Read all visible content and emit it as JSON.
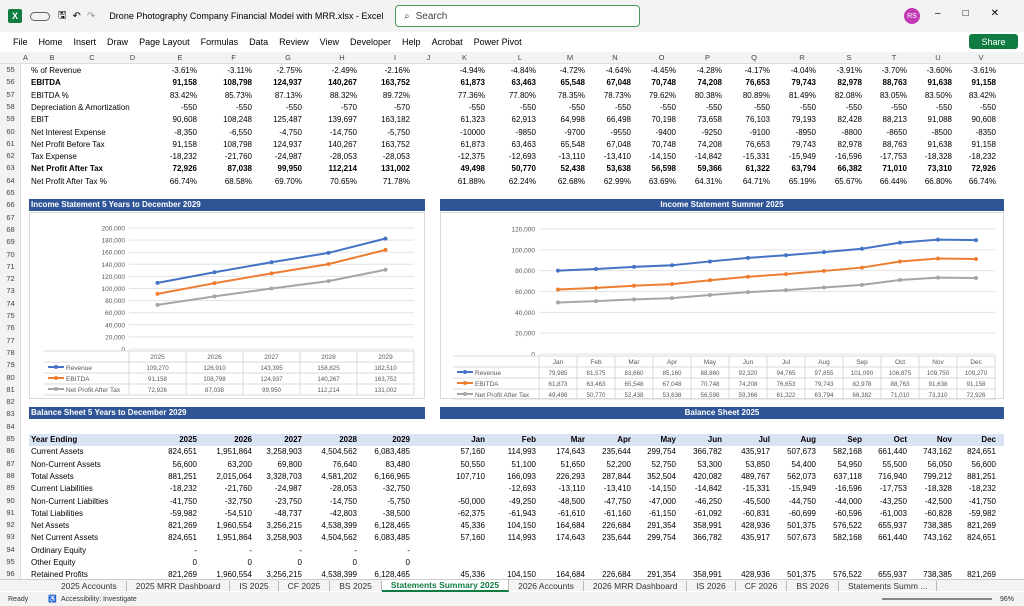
{
  "window": {
    "title": "Drone Photography Company Financial Model with MRR.xlsx  -  Excel",
    "search": "Search",
    "user": "RS",
    "share": "Share"
  },
  "menu": [
    "File",
    "Home",
    "Insert",
    "Draw",
    "Page Layout",
    "Formulas",
    "Data",
    "Review",
    "View",
    "Developer",
    "Help",
    "Acrobat",
    "Power Pivot"
  ],
  "cols": [
    "A",
    "B",
    "C",
    "D",
    "E",
    "F",
    "G",
    "H",
    "I",
    "J",
    "K",
    "L",
    "M",
    "N",
    "O",
    "P",
    "Q",
    "R",
    "S",
    "T",
    "U",
    "V"
  ],
  "top_rows": [
    {
      "n": "55",
      "label": "% of Revenue",
      "bold": false,
      "v": [
        "-3.61%",
        "-3.11%",
        "-2.75%",
        "-2.49%",
        "-2.16%",
        "-4.94%",
        "-4.84%",
        "-4.72%",
        "-4.64%",
        "-4.45%",
        "-4.28%",
        "-4.17%",
        "-4.04%",
        "-3.91%",
        "-3.70%",
        "-3.60%",
        "-3.61%"
      ]
    },
    {
      "n": "56",
      "label": "EBITDA",
      "bold": true,
      "v": [
        "91,158",
        "108,798",
        "124,937",
        "140,267",
        "163,752",
        "61,873",
        "63,463",
        "65,548",
        "67,048",
        "70,748",
        "74,208",
        "76,653",
        "79,743",
        "82,978",
        "88,763",
        "91,638",
        "91,158"
      ]
    },
    {
      "n": "57",
      "label": "EBITDA %",
      "bold": false,
      "v": [
        "83.42%",
        "85.73%",
        "87.13%",
        "88.32%",
        "89.72%",
        "77.36%",
        "77.80%",
        "78.35%",
        "78.73%",
        "79.62%",
        "80.38%",
        "80.89%",
        "81.49%",
        "82.08%",
        "83.05%",
        "83.50%",
        "83.42%"
      ]
    },
    {
      "n": "58",
      "label": "Depreciation & Amortization",
      "bold": false,
      "v": [
        "-550",
        "-550",
        "-550",
        "-570",
        "-570",
        "-550",
        "-550",
        "-550",
        "-550",
        "-550",
        "-550",
        "-550",
        "-550",
        "-550",
        "-550",
        "-550",
        "-550"
      ]
    },
    {
      "n": "59",
      "label": "EBIT",
      "bold": false,
      "v": [
        "90,608",
        "108,248",
        "125,487",
        "139,697",
        "163,182",
        "61,323",
        "62,913",
        "64,998",
        "66,498",
        "70,198",
        "73,658",
        "76,103",
        "79,193",
        "82,428",
        "88,213",
        "91,088",
        "90,608"
      ]
    },
    {
      "n": "60",
      "label": "Net Interest Expense",
      "bold": false,
      "v": [
        "-8,350",
        "-6,550",
        "-4,750",
        "-14,750",
        "-5,750",
        "-10000",
        "-9850",
        "-9700",
        "-9550",
        "-9400",
        "-9250",
        "-9100",
        "-8950",
        "-8800",
        "-8650",
        "-8500",
        "-8350"
      ]
    },
    {
      "n": "61",
      "label": "Net Profit Before Tax",
      "bold": false,
      "v": [
        "91,158",
        "108,798",
        "124,937",
        "140,267",
        "163,752",
        "61,873",
        "63,463",
        "65,548",
        "67,048",
        "70,748",
        "74,208",
        "76,653",
        "79,743",
        "82,978",
        "88,763",
        "91,638",
        "91,158"
      ]
    },
    {
      "n": "62",
      "label": "Tax Expense",
      "bold": false,
      "v": [
        "-18,232",
        "-21,760",
        "-24,987",
        "-28,053",
        "-28,053",
        "-12,375",
        "-12,693",
        "-13,110",
        "-13,410",
        "-14,150",
        "-14,842",
        "-15,331",
        "-15,949",
        "-16,596",
        "-17,753",
        "-18,328",
        "-18,232"
      ]
    },
    {
      "n": "63",
      "label": "Net Profit After Tax",
      "bold": true,
      "v": [
        "72,926",
        "87,038",
        "99,950",
        "112,214",
        "131,002",
        "49,498",
        "50,770",
        "52,438",
        "53,638",
        "56,598",
        "59,366",
        "61,322",
        "63,794",
        "66,382",
        "71,010",
        "73,310",
        "72,926"
      ]
    },
    {
      "n": "64",
      "label": "Net Profit After Tax %",
      "bold": false,
      "v": [
        "66.74%",
        "68.58%",
        "69.70%",
        "70.65%",
        "71.78%",
        "61.88%",
        "62.24%",
        "62.68%",
        "62.99%",
        "63.69%",
        "64.31%",
        "64.71%",
        "65.19%",
        "65.67%",
        "66.44%",
        "66.80%",
        "66.74%"
      ]
    }
  ],
  "band_is_5y": "Income Statement 5 Years to December 2029",
  "band_is_month": "Income Statement Summer 2025",
  "band_bs_5y": "Balance Sheet 5 Years to December 2029",
  "band_bs_month": "Balance Sheet 2025",
  "chart_data": [
    {
      "type": "line",
      "title": "",
      "categories": [
        "2025",
        "2026",
        "2027",
        "2028",
        "2029"
      ],
      "ylim": [
        0,
        200000
      ],
      "yticks": [
        "0",
        "20,000",
        "40,000",
        "60,000",
        "80,000",
        "100,000",
        "120,000",
        "140,000",
        "160,000",
        "180,000",
        "200,000"
      ],
      "series": [
        {
          "name": "Revenue",
          "color": "#4472c4",
          "values": [
            109270,
            126910,
            143395,
            158825,
            182510
          ],
          "labels": [
            "109,270",
            "126,910",
            "143,395",
            "158,825",
            "182,510"
          ]
        },
        {
          "name": "EBITDA",
          "color": "#ed7d31",
          "values": [
            91158,
            108798,
            124937,
            140267,
            163752
          ],
          "labels": [
            "91,158",
            "108,798",
            "124,937",
            "140,267",
            "163,752"
          ]
        },
        {
          "name": "Net Profit After Tax",
          "color": "#a5a5a5",
          "values": [
            72926,
            87038,
            99950,
            112214,
            131002
          ],
          "labels": [
            "72,926",
            "87,038",
            "99,950",
            "112,214",
            "131,002"
          ]
        }
      ]
    },
    {
      "type": "line",
      "title": "",
      "categories": [
        "Jan",
        "Feb",
        "Mar",
        "Apr",
        "May",
        "Jun",
        "Jul",
        "Aug",
        "Sep",
        "Oct",
        "Nov",
        "Dec"
      ],
      "ylim": [
        0,
        120000
      ],
      "yticks": [
        "0",
        "20,000",
        "40,000",
        "60,000",
        "80,000",
        "100,000",
        "120,000"
      ],
      "series": [
        {
          "name": "Revenue",
          "color": "#4472c4",
          "values": [
            79985,
            81575,
            83660,
            85160,
            88860,
            92320,
            94765,
            97855,
            101090,
            106875,
            109750,
            109270
          ],
          "labels": [
            "79,985",
            "81,575",
            "83,660",
            "85,160",
            "88,860",
            "92,320",
            "94,765",
            "97,855",
            "101,090",
            "106,875",
            "109,750",
            "109,270"
          ]
        },
        {
          "name": "EBITDA",
          "color": "#ed7d31",
          "values": [
            61873,
            63463,
            65548,
            67048,
            70748,
            74208,
            76653,
            79743,
            82978,
            88763,
            91638,
            91158
          ],
          "labels": [
            "61,873",
            "63,463",
            "65,548",
            "67,048",
            "70,748",
            "74,208",
            "76,653",
            "79,743",
            "82,978",
            "88,763",
            "91,638",
            "91,158"
          ]
        },
        {
          "name": "Net Profit After Tax",
          "color": "#a5a5a5",
          "values": [
            49498,
            50770,
            52438,
            53638,
            56598,
            59366,
            61322,
            63794,
            66382,
            71010,
            73310,
            72926
          ],
          "labels": [
            "49,498",
            "50,770",
            "52,438",
            "53,638",
            "56,598",
            "59,366",
            "61,322",
            "63,794",
            "66,382",
            "71,010",
            "73,310",
            "72,926"
          ]
        }
      ]
    }
  ],
  "bs_header": {
    "n": "84",
    "label": "Year Ending",
    "v": [
      "2025",
      "2026",
      "2027",
      "2028",
      "2029",
      "Jan",
      "Feb",
      "Mar",
      "Apr",
      "May",
      "Jun",
      "Jul",
      "Aug",
      "Sep",
      "Oct",
      "Nov",
      "Dec"
    ]
  },
  "bs_rows": [
    {
      "n": "86",
      "label": "Current Assets",
      "v": [
        "824,651",
        "1,951,864",
        "3,258,903",
        "4,504,562",
        "6,083,485",
        "57,160",
        "114,993",
        "174,643",
        "235,644",
        "299,754",
        "366,782",
        "435,917",
        "507,673",
        "582,168",
        "661,440",
        "743,162",
        "824,651"
      ]
    },
    {
      "n": "87",
      "label": "Non-Current Assets",
      "v": [
        "56,600",
        "63,200",
        "69,800",
        "76,640",
        "83,480",
        "50,550",
        "51,100",
        "51,650",
        "52,200",
        "52,750",
        "53,300",
        "53,850",
        "54,400",
        "54,950",
        "55,500",
        "56,050",
        "56,600"
      ]
    },
    {
      "n": "88",
      "label": "Total Assets",
      "v": [
        "881,251",
        "2,015,064",
        "3,328,703",
        "4,581,202",
        "6,166,965",
        "107,710",
        "166,093",
        "226,293",
        "287,844",
        "352,504",
        "420,082",
        "489,767",
        "562,073",
        "637,118",
        "716,940",
        "799,212",
        "881,251"
      ]
    },
    {
      "n": "89",
      "label": "Current Liabilities",
      "v": [
        "-18,232",
        "-21,760",
        "-24,987",
        "-28,053",
        "-32,750",
        "",
        "-12,693",
        "-13,110",
        "-13,410",
        "-14,150",
        "-14,842",
        "-15,331",
        "-15,949",
        "-16,596",
        "-17,753",
        "-18,328",
        "-18,232"
      ]
    },
    {
      "n": "90",
      "label": "Non-Current Liabilties",
      "v": [
        "-41,750",
        "-32,750",
        "-23,750",
        "-14,750",
        "-5,750",
        "-50,000",
        "-49,250",
        "-48,500",
        "-47,750",
        "-47,000",
        "-46,250",
        "-45,500",
        "-44,750",
        "-44,000",
        "-43,250",
        "-42,500",
        "-41,750"
      ]
    },
    {
      "n": "91",
      "label": "Total Liabilities",
      "v": [
        "-59,982",
        "-54,510",
        "-48,737",
        "-42,803",
        "-38,500",
        "-62,375",
        "-61,943",
        "-61,610",
        "-61,160",
        "-61,150",
        "-61,092",
        "-60,831",
        "-60,699",
        "-60,596",
        "-61,003",
        "-60,828",
        "-59,982"
      ]
    },
    {
      "n": "92",
      "label": "Net Assets",
      "v": [
        "821,269",
        "1,960,554",
        "3,256,215",
        "4,538,399",
        "6,128,465",
        "45,336",
        "104,150",
        "164,684",
        "226,684",
        "291,354",
        "358,991",
        "428,936",
        "501,375",
        "576,522",
        "655,937",
        "738,385",
        "821,269"
      ]
    },
    {
      "n": "93",
      "label": "Net Current Assets",
      "v": [
        "824,651",
        "1,951,864",
        "3,258,903",
        "4,504,562",
        "6,083,485",
        "57,160",
        "114,993",
        "174,643",
        "235,644",
        "299,754",
        "366,782",
        "435,917",
        "507,673",
        "582,168",
        "661,440",
        "743,162",
        "824,651"
      ]
    },
    {
      "n": "94",
      "label": "Ordinary Equity",
      "v": [
        "-",
        "-",
        "-",
        "-",
        "-",
        "",
        "",
        "",
        "",
        "",
        "",
        "",
        "",
        "",
        "",
        "",
        ""
      ]
    },
    {
      "n": "95",
      "label": "Other Equity",
      "v": [
        "0",
        "0",
        "0",
        "0",
        "0",
        "",
        "",
        "",
        "",
        "",
        "",
        "",
        "",
        "",
        "",
        "",
        ""
      ]
    },
    {
      "n": "96",
      "label": "Retained Profits",
      "v": [
        "821,269",
        "1,960,554",
        "3,256,215",
        "4,538,399",
        "6,128,465",
        "45,336",
        "104,150",
        "164,684",
        "226,684",
        "291,354",
        "358,991",
        "428,936",
        "501,375",
        "576,522",
        "655,937",
        "738,385",
        "821,269"
      ]
    }
  ],
  "tabs": [
    "2025 Accounts",
    "2025 MRR Dashboard",
    "IS 2025",
    "CF 2025",
    "BS 2025",
    "Statements Summary 2025",
    "2026 Accounts",
    "2026 MRR Dashboard",
    "IS 2026",
    "CF 2026",
    "BS 2026",
    "Statements Summ ..."
  ],
  "active_tab": "Statements Summary 2025",
  "status": {
    "ready": "Ready",
    "accessibility": "Accessibility: Investigate",
    "zoom": "96%"
  }
}
